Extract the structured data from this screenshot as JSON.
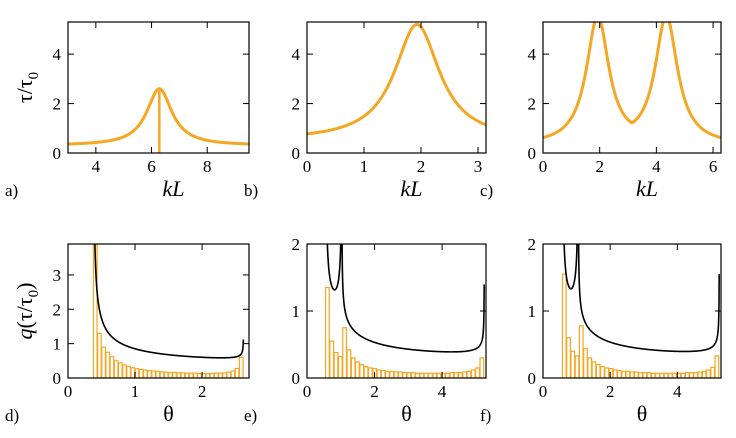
{
  "colors": {
    "curve": "#f5a623",
    "bar": "#f5a623",
    "envelope": "#000000",
    "axis": "#000000"
  },
  "chart_data": [
    {
      "id": "a",
      "type": "line",
      "panel_label": "a)",
      "xlabel": "kL",
      "ylabel": "τ/τ0",
      "xlim": [
        3.0,
        9.5
      ],
      "ylim": [
        0,
        5.3
      ],
      "xticks": [
        4,
        6,
        8
      ],
      "yticks": [
        0,
        2,
        4
      ],
      "peaks": [
        {
          "x": 6.28,
          "y": 2.6,
          "width": 0.55
        }
      ],
      "baseline": 0.3,
      "spike_at": 6.28
    },
    {
      "id": "b",
      "type": "line",
      "panel_label": "b)",
      "xlabel": "kL",
      "ylabel": "",
      "xlim": [
        0,
        3.14
      ],
      "ylim": [
        0,
        5.3
      ],
      "xticks": [
        0,
        1,
        2,
        3
      ],
      "yticks": [
        0,
        2,
        4
      ],
      "peaks": [
        {
          "x": 1.93,
          "y": 5.2,
          "width": 0.48
        }
      ],
      "baseline": 0.5
    },
    {
      "id": "c",
      "type": "line",
      "panel_label": "c)",
      "xlabel": "kL",
      "ylabel": "",
      "xlim": [
        0,
        6.28
      ],
      "ylim": [
        0,
        5.3
      ],
      "xticks": [
        0,
        2,
        4,
        6
      ],
      "yticks": [
        0,
        2,
        4
      ],
      "peaks": [
        {
          "x": 1.93,
          "y": 5.2,
          "width": 0.48
        },
        {
          "x": 4.35,
          "y": 5.2,
          "width": 0.48
        }
      ],
      "baseline": 0.5
    },
    {
      "id": "d",
      "type": "bar",
      "panel_label": "d)",
      "xlabel": "θ",
      "ylabel": "q(τ/τ0)",
      "xlim": [
        0,
        2.7
      ],
      "ylim": [
        0,
        3.9
      ],
      "xticks": [
        0,
        1,
        2
      ],
      "yticks": [
        0,
        1,
        2,
        3
      ],
      "theta_min": 0.38,
      "theta_max": 2.62,
      "singularities": [
        {
          "x": 0.38,
          "amp": 0.55,
          "side": "right"
        },
        {
          "x": 2.62,
          "amp": 0.04,
          "side": "left"
        }
      ],
      "floor": 0.12,
      "histogram_values": [
        3.9,
        1.3,
        0.9,
        0.75,
        0.62,
        0.5,
        0.44,
        0.38,
        0.34,
        0.3,
        0.27,
        0.25,
        0.23,
        0.21,
        0.2,
        0.19,
        0.18,
        0.17,
        0.16,
        0.16,
        0.15,
        0.15,
        0.14,
        0.14,
        0.14,
        0.13,
        0.13,
        0.13,
        0.13,
        0.14,
        0.14,
        0.15,
        0.17,
        0.2,
        0.28,
        0.6
      ]
    },
    {
      "id": "e",
      "type": "bar",
      "panel_label": "e)",
      "xlabel": "θ",
      "ylabel": "",
      "xlim": [
        0,
        5.3
      ],
      "ylim": [
        0,
        2.0
      ],
      "xticks": [
        0,
        2,
        4
      ],
      "yticks": [
        0,
        1,
        2
      ],
      "theta_min": 0.55,
      "theta_max": 5.25,
      "singularities": [
        {
          "x": 0.55,
          "amp": 0.35,
          "side": "right"
        },
        {
          "x": 1.03,
          "amp": 0.28,
          "side": "both"
        },
        {
          "x": 5.25,
          "amp": 0.07,
          "side": "left"
        }
      ],
      "floor": 0.06,
      "histogram_values": [
        1.35,
        0.55,
        0.38,
        0.32,
        0.75,
        0.42,
        0.3,
        0.24,
        0.2,
        0.17,
        0.15,
        0.14,
        0.12,
        0.11,
        0.1,
        0.1,
        0.09,
        0.09,
        0.08,
        0.08,
        0.08,
        0.07,
        0.07,
        0.07,
        0.07,
        0.07,
        0.07,
        0.07,
        0.07,
        0.08,
        0.08,
        0.08,
        0.09,
        0.1,
        0.12,
        0.15,
        0.3
      ]
    },
    {
      "id": "f",
      "type": "bar",
      "panel_label": "f)",
      "xlabel": "θ",
      "ylabel": "",
      "xlim": [
        0,
        5.3
      ],
      "ylim": [
        0,
        2.0
      ],
      "xticks": [
        0,
        2,
        4
      ],
      "yticks": [
        0,
        1,
        2
      ],
      "theta_min": 0.58,
      "theta_max": 5.25,
      "singularities": [
        {
          "x": 0.58,
          "amp": 0.33,
          "side": "right"
        },
        {
          "x": 1.05,
          "amp": 0.3,
          "side": "both"
        },
        {
          "x": 5.25,
          "amp": 0.08,
          "side": "left"
        }
      ],
      "floor": 0.06,
      "histogram_values": [
        1.55,
        0.6,
        0.4,
        0.33,
        0.78,
        0.44,
        0.3,
        0.24,
        0.2,
        0.17,
        0.15,
        0.14,
        0.12,
        0.11,
        0.1,
        0.1,
        0.09,
        0.09,
        0.08,
        0.08,
        0.08,
        0.07,
        0.07,
        0.07,
        0.07,
        0.07,
        0.07,
        0.07,
        0.07,
        0.08,
        0.08,
        0.08,
        0.09,
        0.1,
        0.12,
        0.16,
        0.33
      ]
    }
  ]
}
